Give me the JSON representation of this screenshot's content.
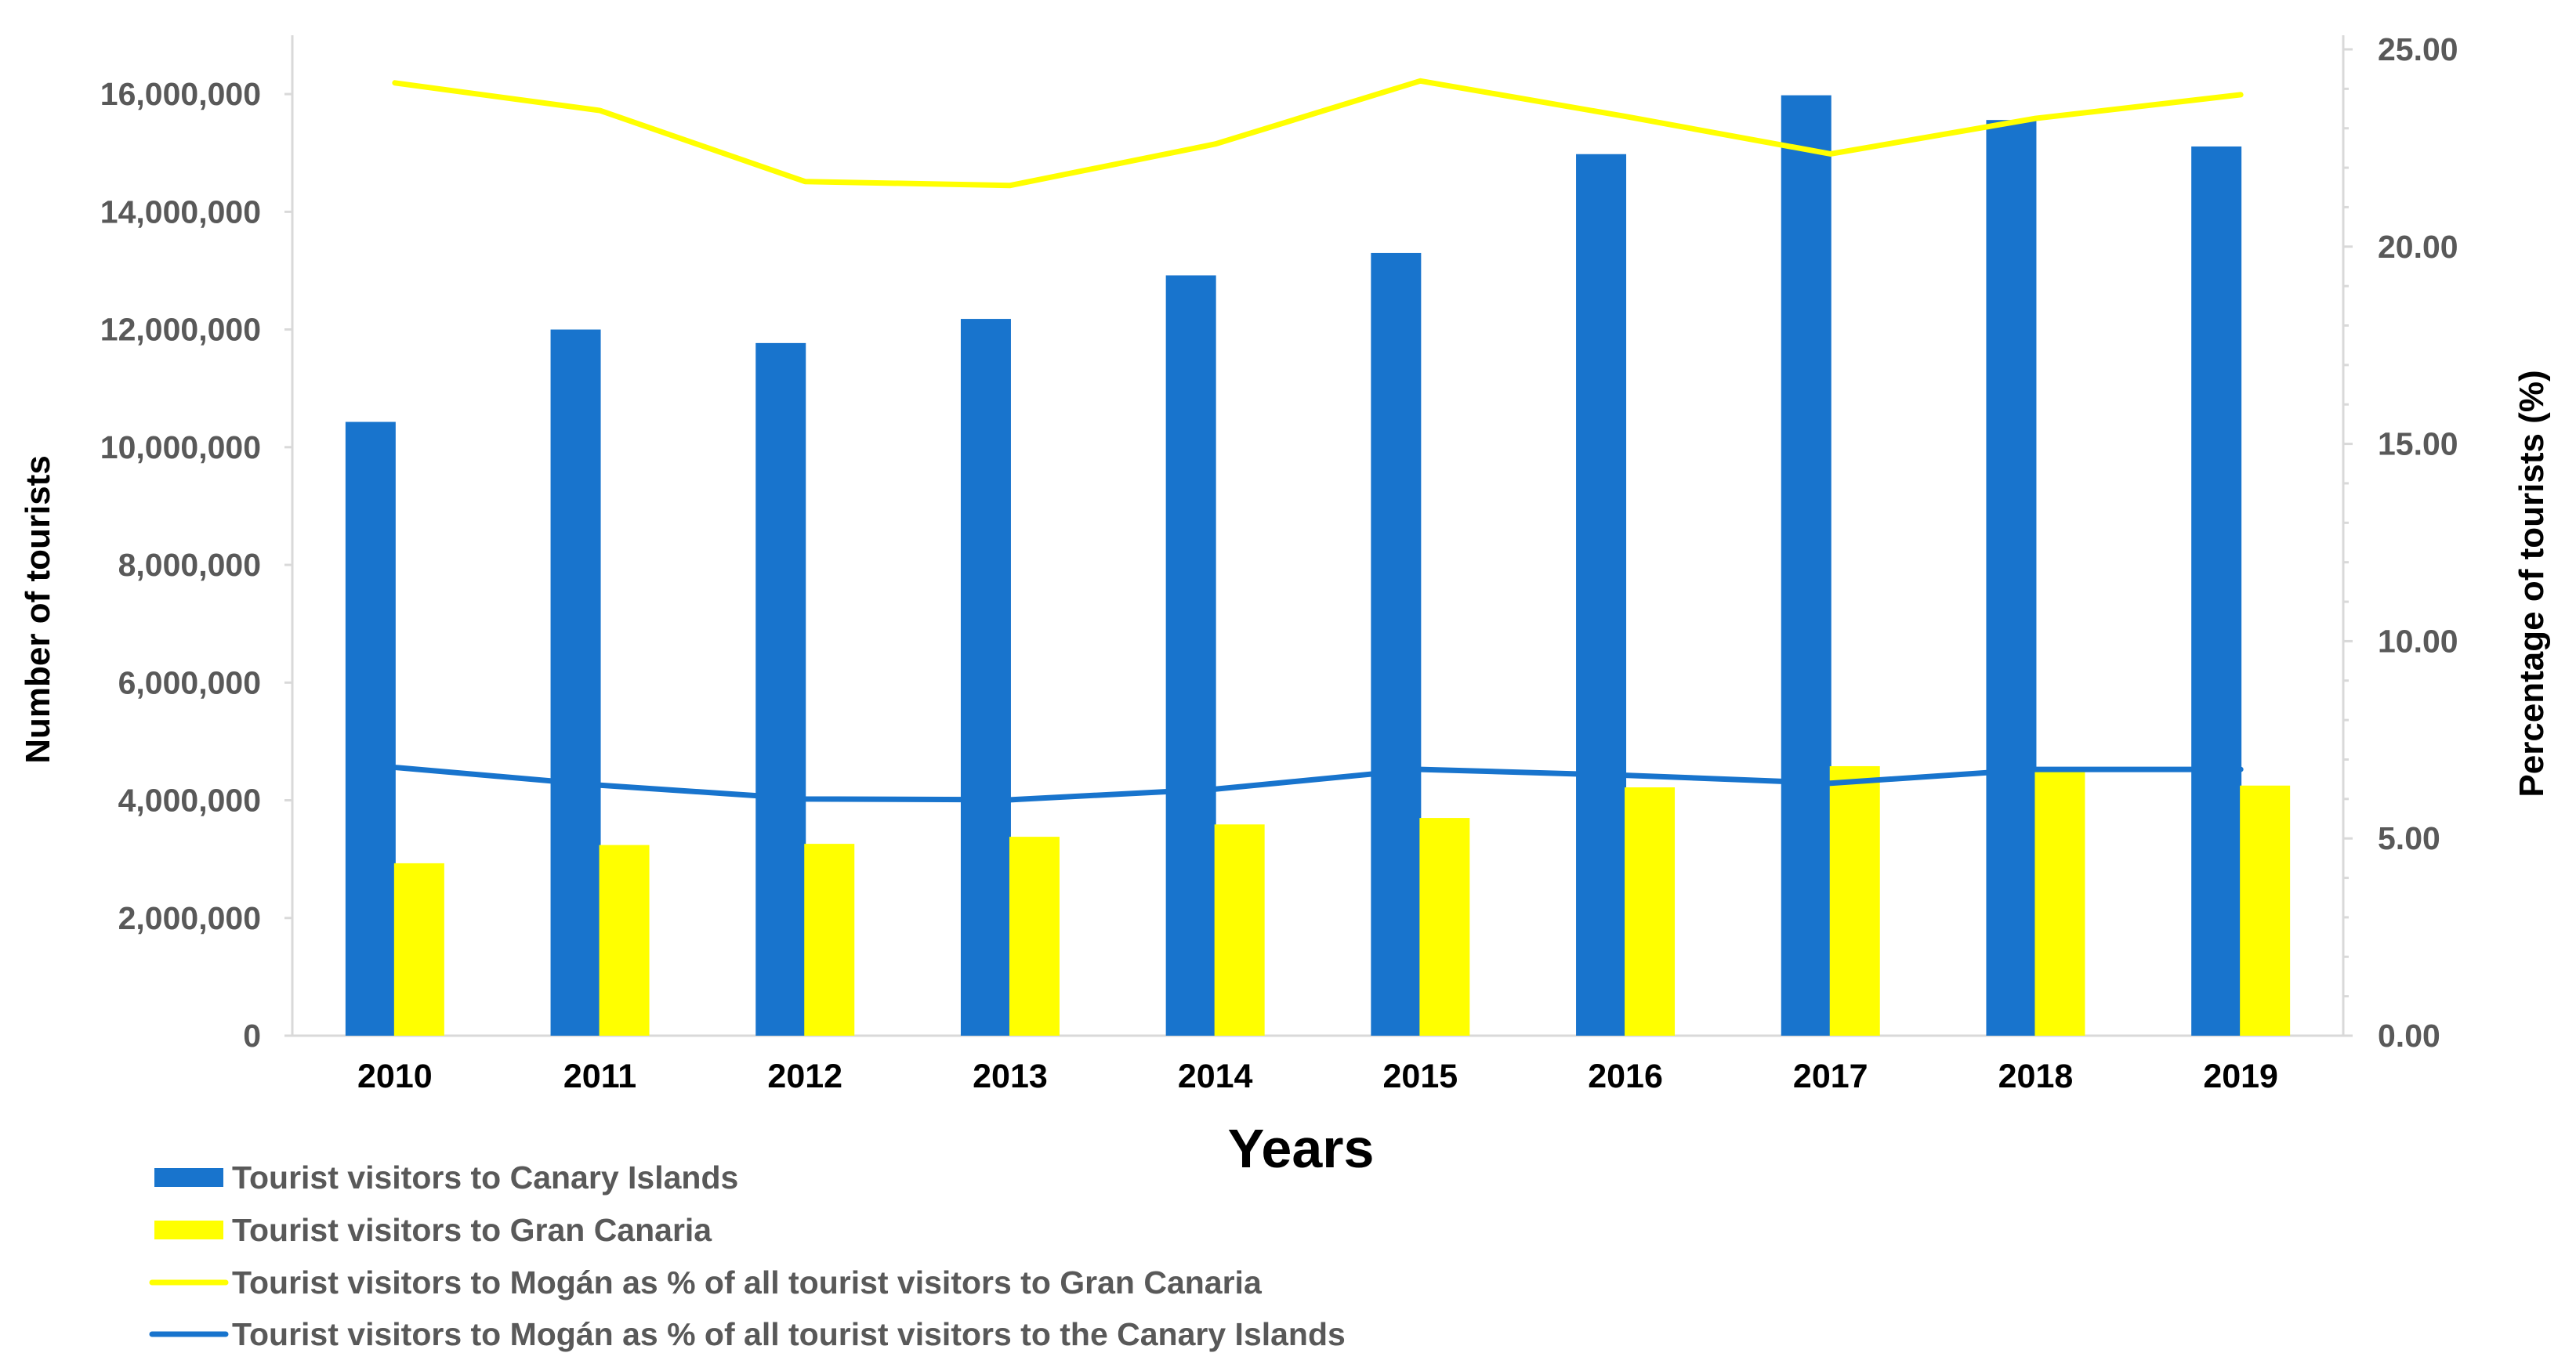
{
  "chart_data": {
    "type": "bar",
    "title": "",
    "categories": [
      "2010",
      "2011",
      "2012",
      "2013",
      "2014",
      "2015",
      "2016",
      "2017",
      "2018",
      "2019"
    ],
    "xlabel": "Years",
    "ylabel": "Number of tourists",
    "y2label": "Percentage of tourists (%)",
    "ylim": [
      0,
      17000000
    ],
    "y2lim": [
      0,
      25
    ],
    "yticks": [
      "0",
      "2,000,000",
      "4,000,000",
      "6,000,000",
      "8,000,000",
      "10,000,000",
      "12,000,000",
      "14,000,000",
      "16,000,000"
    ],
    "y2ticks": [
      "0.00",
      "5.00",
      "10.00",
      "15.00",
      "20.00",
      "25.00"
    ],
    "series": [
      {
        "name": "Tourist visitors to Canary Islands",
        "kind": "bar",
        "axis": "left",
        "color": "#1874cd",
        "values": [
          10430000,
          12000000,
          11770000,
          12180000,
          12920000,
          13300000,
          14980000,
          15980000,
          15560000,
          15110000
        ]
      },
      {
        "name": "Tourist visitors to Gran Canaria",
        "kind": "bar",
        "axis": "left",
        "color": "#ffff00",
        "values": [
          2930000,
          3240000,
          3260000,
          3380000,
          3590000,
          3700000,
          4220000,
          4580000,
          4500000,
          4250000
        ]
      },
      {
        "name": "Tourist visitors to Mogán as % of all tourist visitors to Gran Canaria",
        "kind": "line",
        "axis": "right",
        "color": "#ffff00",
        "values": [
          24.15,
          23.45,
          21.65,
          21.55,
          22.6,
          24.2,
          23.3,
          22.35,
          23.25,
          23.85
        ]
      },
      {
        "name": "Tourist visitors to Mogán as % of all tourist visitors to the Canary Islands",
        "kind": "line",
        "axis": "right",
        "color": "#1874cd",
        "values": [
          6.8,
          6.35,
          6.0,
          5.98,
          6.25,
          6.75,
          6.6,
          6.4,
          6.75,
          6.75
        ]
      }
    ],
    "legend": "bottom-left",
    "grid": false
  }
}
